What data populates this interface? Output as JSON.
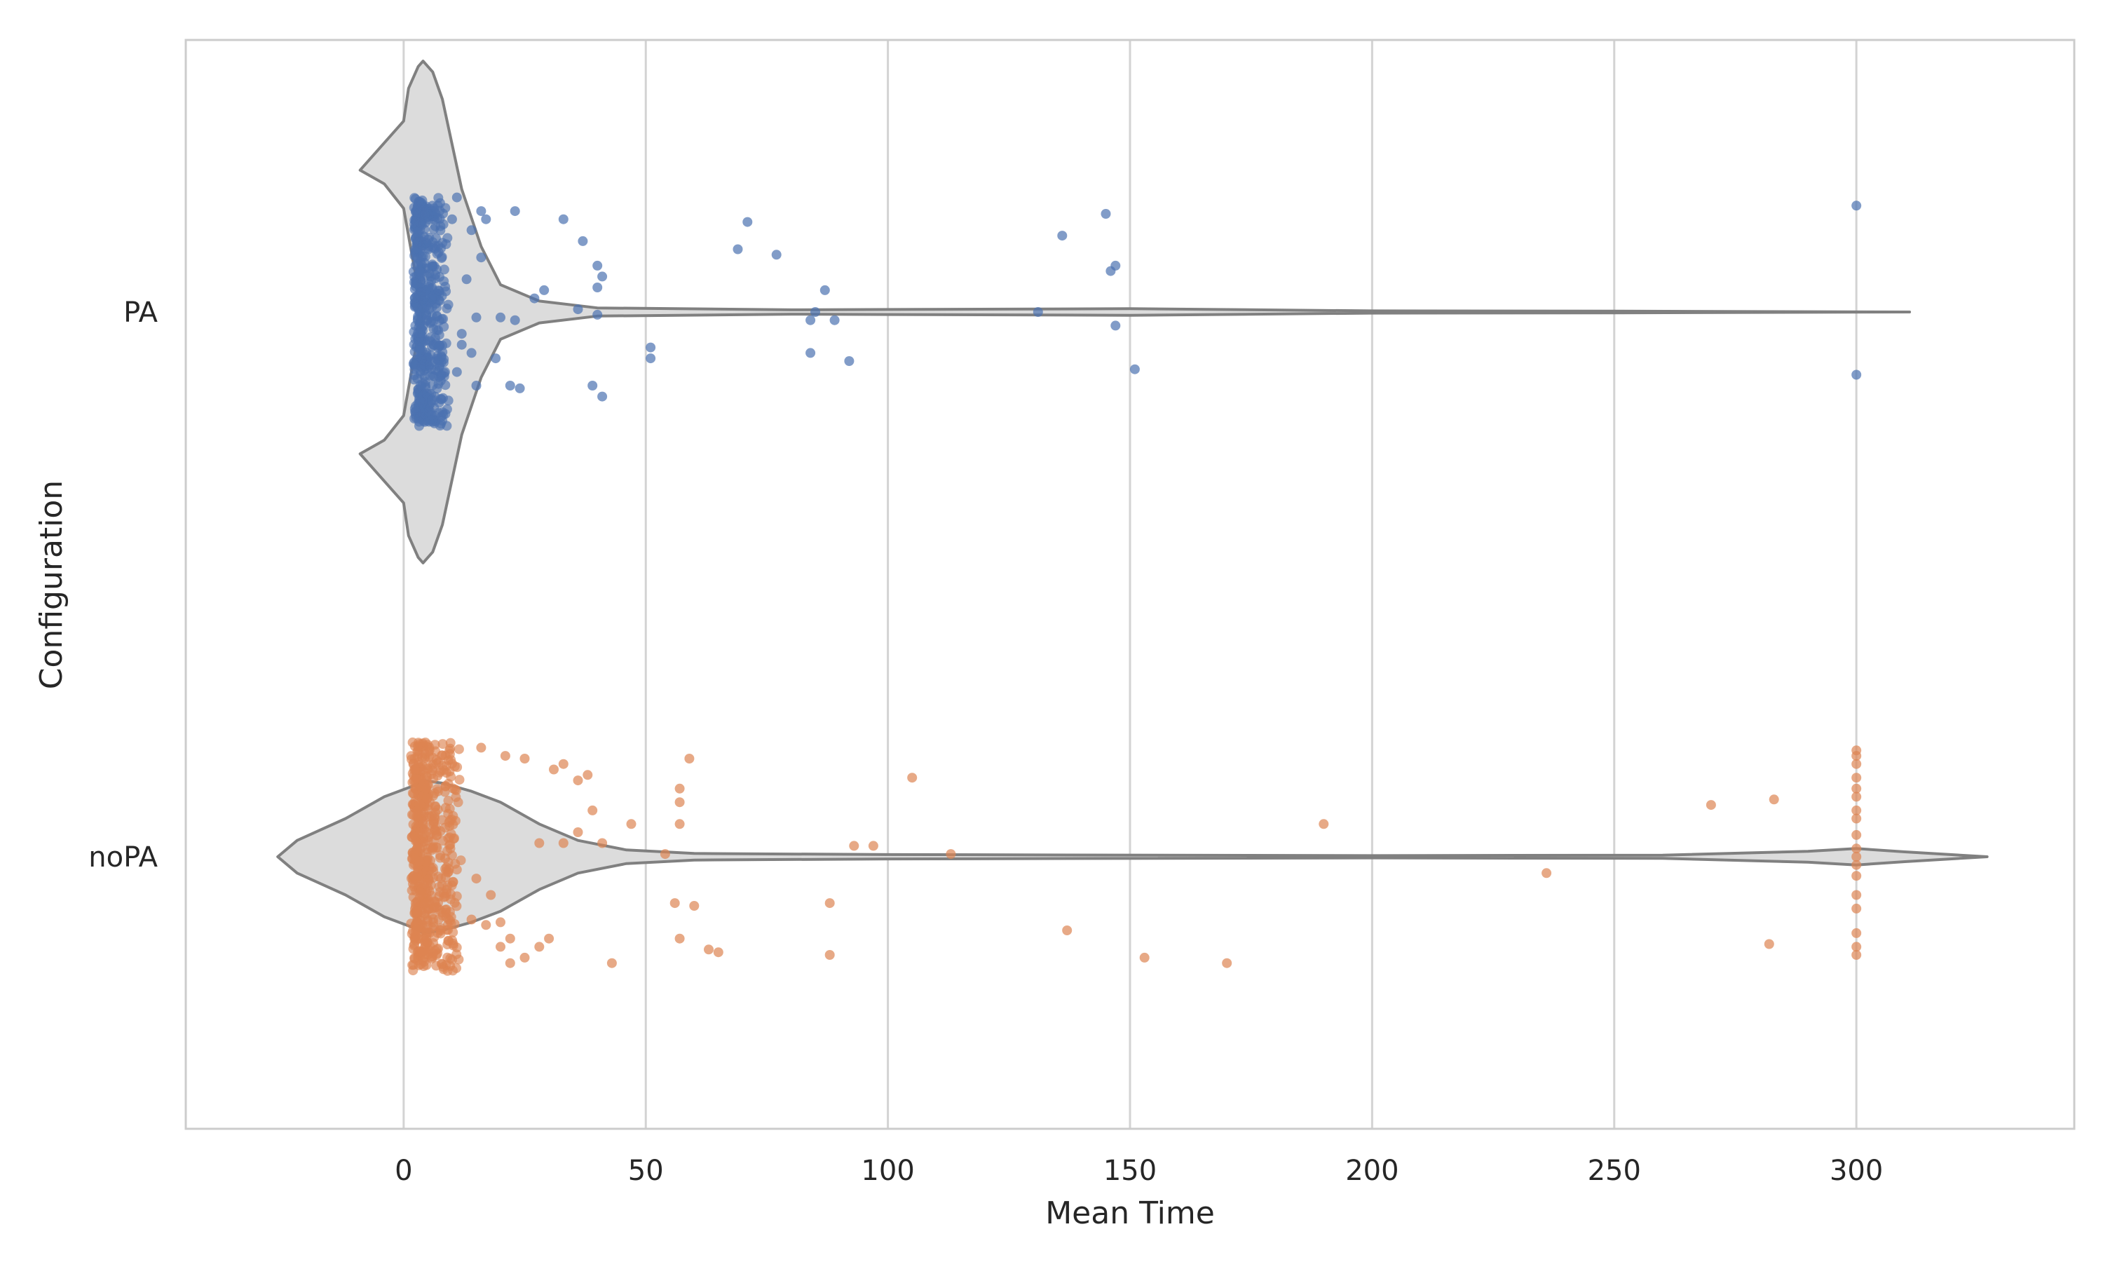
{
  "chart_data": {
    "type": "violin",
    "xlabel": "Mean Time",
    "ylabel": "Configuration",
    "xlim": [
      -45,
      345
    ],
    "x_ticks": [
      0,
      50,
      100,
      150,
      200,
      250,
      300
    ],
    "grid": true,
    "categories": [
      "PA",
      "noPA"
    ],
    "colors": {
      "PA": "#4c72b0",
      "noPA": "#dd8452",
      "violin_fill": "#dcdcdc",
      "violin_edge": "#808080",
      "grid": "#d3d3d3",
      "frame": "#cccccc"
    },
    "violins": [
      {
        "category": "PA",
        "profile": [
          [
            4,
            0
          ],
          [
            2,
            0.18
          ],
          [
            0,
            0.38
          ],
          [
            -4,
            0.47
          ],
          [
            -9,
            0.52
          ],
          [
            -5,
            0.6
          ],
          [
            0,
            0.7
          ],
          [
            1,
            0.82
          ],
          [
            3,
            0.9
          ],
          [
            4,
            0.92
          ],
          [
            6,
            0.88
          ],
          [
            8,
            0.78
          ],
          [
            12,
            0.45
          ],
          [
            16,
            0.24
          ],
          [
            20,
            0.1
          ],
          [
            28,
            0.04
          ],
          [
            40,
            0.015
          ],
          [
            80,
            0.008
          ],
          [
            150,
            0.012
          ],
          [
            200,
            0.004
          ],
          [
            250,
            0.003
          ],
          [
            311,
            0
          ]
        ]
      },
      {
        "category": "noPA",
        "profile": [
          [
            -26,
            0
          ],
          [
            -22,
            0.06
          ],
          [
            -12,
            0.14
          ],
          [
            -4,
            0.22
          ],
          [
            2,
            0.26
          ],
          [
            4,
            0.28
          ],
          [
            8,
            0.27
          ],
          [
            14,
            0.24
          ],
          [
            20,
            0.2
          ],
          [
            28,
            0.12
          ],
          [
            36,
            0.06
          ],
          [
            46,
            0.025
          ],
          [
            60,
            0.012
          ],
          [
            100,
            0.008
          ],
          [
            200,
            0.004
          ],
          [
            260,
            0.006
          ],
          [
            290,
            0.02
          ],
          [
            300,
            0.03
          ],
          [
            310,
            0.018
          ],
          [
            327,
            0
          ]
        ]
      }
    ],
    "series": [
      {
        "name": "PA",
        "points": [
          [
            11,
            -0.42
          ],
          [
            16,
            -0.37
          ],
          [
            17,
            -0.34
          ],
          [
            10,
            -0.34
          ],
          [
            14,
            -0.3
          ],
          [
            23,
            -0.37
          ],
          [
            33,
            -0.34
          ],
          [
            37,
            -0.26
          ],
          [
            29,
            -0.08
          ],
          [
            40,
            -0.17
          ],
          [
            41,
            -0.13
          ],
          [
            40,
            -0.09
          ],
          [
            36,
            -0.01
          ],
          [
            40,
            0.01
          ],
          [
            27,
            -0.05
          ],
          [
            20,
            0.02
          ],
          [
            23,
            0.03
          ],
          [
            15,
            0.02
          ],
          [
            19,
            0.17
          ],
          [
            15,
            0.27
          ],
          [
            22,
            0.27
          ],
          [
            24,
            0.28
          ],
          [
            14,
            0.15
          ],
          [
            12,
            0.12
          ],
          [
            39,
            0.27
          ],
          [
            41,
            0.31
          ],
          [
            51,
            0.13
          ],
          [
            51,
            0.17
          ],
          [
            69,
            -0.23
          ],
          [
            71,
            -0.33
          ],
          [
            77,
            -0.21
          ],
          [
            85,
            0
          ],
          [
            84,
            0.03
          ],
          [
            87,
            -0.08
          ],
          [
            89,
            0.03
          ],
          [
            84,
            0.15
          ],
          [
            92,
            0.18
          ],
          [
            131,
            0
          ],
          [
            136,
            -0.28
          ],
          [
            145,
            -0.36
          ],
          [
            147,
            -0.17
          ],
          [
            146,
            -0.15
          ],
          [
            147,
            0.05
          ],
          [
            151,
            0.21
          ],
          [
            300,
            -0.39
          ],
          [
            300,
            0.23
          ],
          [
            11,
            0.22
          ],
          [
            12,
            0.08
          ],
          [
            13,
            -0.12
          ],
          [
            16,
            -0.2
          ]
        ]
      },
      {
        "name": "noPA",
        "points": [
          [
            16,
            -0.4
          ],
          [
            21,
            -0.37
          ],
          [
            25,
            -0.36
          ],
          [
            31,
            -0.32
          ],
          [
            33,
            -0.34
          ],
          [
            36,
            -0.28
          ],
          [
            38,
            -0.3
          ],
          [
            39,
            -0.17
          ],
          [
            47,
            -0.12
          ],
          [
            57,
            -0.25
          ],
          [
            57,
            -0.2
          ],
          [
            59,
            -0.36
          ],
          [
            57,
            -0.12
          ],
          [
            36,
            -0.09
          ],
          [
            41,
            -0.05
          ],
          [
            33,
            -0.05
          ],
          [
            28,
            -0.05
          ],
          [
            54,
            -0.01
          ],
          [
            93,
            -0.04
          ],
          [
            97,
            -0.04
          ],
          [
            113,
            -0.01
          ],
          [
            105,
            -0.29
          ],
          [
            56,
            0.17
          ],
          [
            60,
            0.18
          ],
          [
            57,
            0.3
          ],
          [
            63,
            0.34
          ],
          [
            65,
            0.35
          ],
          [
            88,
            0.17
          ],
          [
            88,
            0.36
          ],
          [
            43,
            0.39
          ],
          [
            30,
            0.3
          ],
          [
            28,
            0.33
          ],
          [
            25,
            0.37
          ],
          [
            22,
            0.39
          ],
          [
            20,
            0.33
          ],
          [
            22,
            0.3
          ],
          [
            20,
            0.24
          ],
          [
            17,
            0.25
          ],
          [
            14,
            0.23
          ],
          [
            18,
            0.14
          ],
          [
            15,
            0.08
          ],
          [
            137,
            0.27
          ],
          [
            153,
            0.37
          ],
          [
            170,
            0.39
          ],
          [
            190,
            -0.12
          ],
          [
            236,
            0.06
          ],
          [
            270,
            -0.19
          ],
          [
            283,
            -0.21
          ],
          [
            282,
            0.32
          ],
          [
            300,
            -0.39
          ],
          [
            300,
            -0.37
          ],
          [
            300,
            -0.34
          ],
          [
            300,
            -0.29
          ],
          [
            300,
            -0.25
          ],
          [
            300,
            -0.22
          ],
          [
            300,
            -0.17
          ],
          [
            300,
            -0.14
          ],
          [
            300,
            -0.08
          ],
          [
            300,
            -0.03
          ],
          [
            300,
            0
          ],
          [
            300,
            0.03
          ],
          [
            300,
            0.07
          ],
          [
            300,
            0.14
          ],
          [
            300,
            0.19
          ],
          [
            300,
            0.28
          ],
          [
            300,
            0.33
          ],
          [
            300,
            0.36
          ]
        ]
      }
    ]
  }
}
